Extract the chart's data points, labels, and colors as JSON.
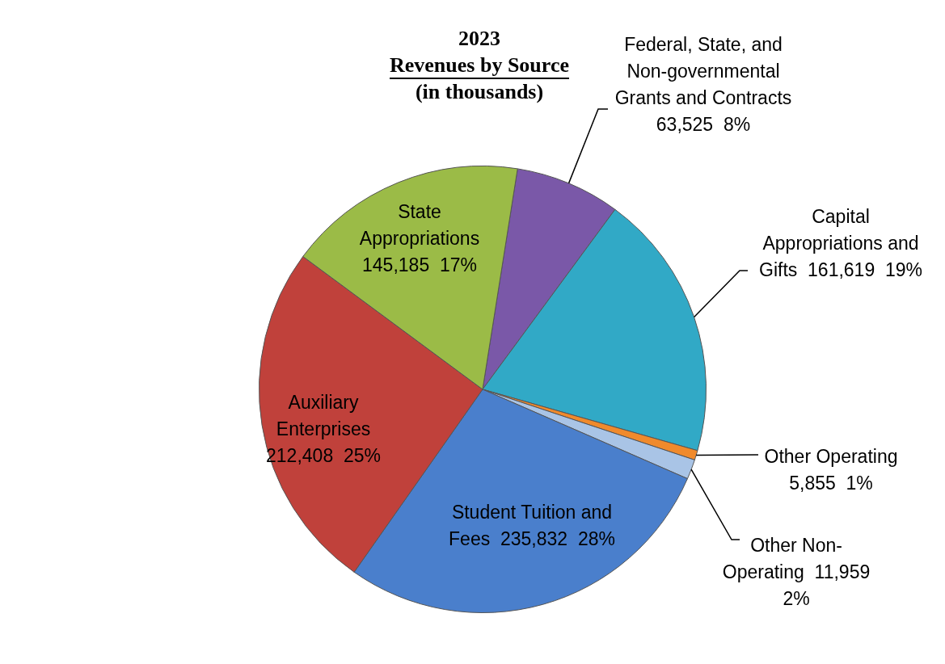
{
  "chart_data": {
    "type": "pie",
    "title": "2023 Revenues by Source",
    "subtitle": "(in thousands)",
    "categories": [
      "Federal, State, and Non-governmental Grants and Contracts",
      "Capital Appropriations and Gifts",
      "Other Operating",
      "Other Non-Operating",
      "Student Tuition and Fees",
      "Auxiliary Enterprises",
      "State Appropriations"
    ],
    "values": [
      63525,
      161619,
      5855,
      11959,
      235832,
      212408,
      145185
    ],
    "value_labels": [
      "63,525  8%",
      "161,619  19%",
      "5,855  1%",
      "11,959  2%",
      "235,832  28%",
      "212,408  25%",
      "145,185  17%"
    ],
    "colors": [
      "#7a58a8",
      "#31a9c6",
      "#f08a2c",
      "#a9c4e6",
      "#4a7fcc",
      "#c0413b",
      "#9bbb47"
    ],
    "legend": false
  }
}
